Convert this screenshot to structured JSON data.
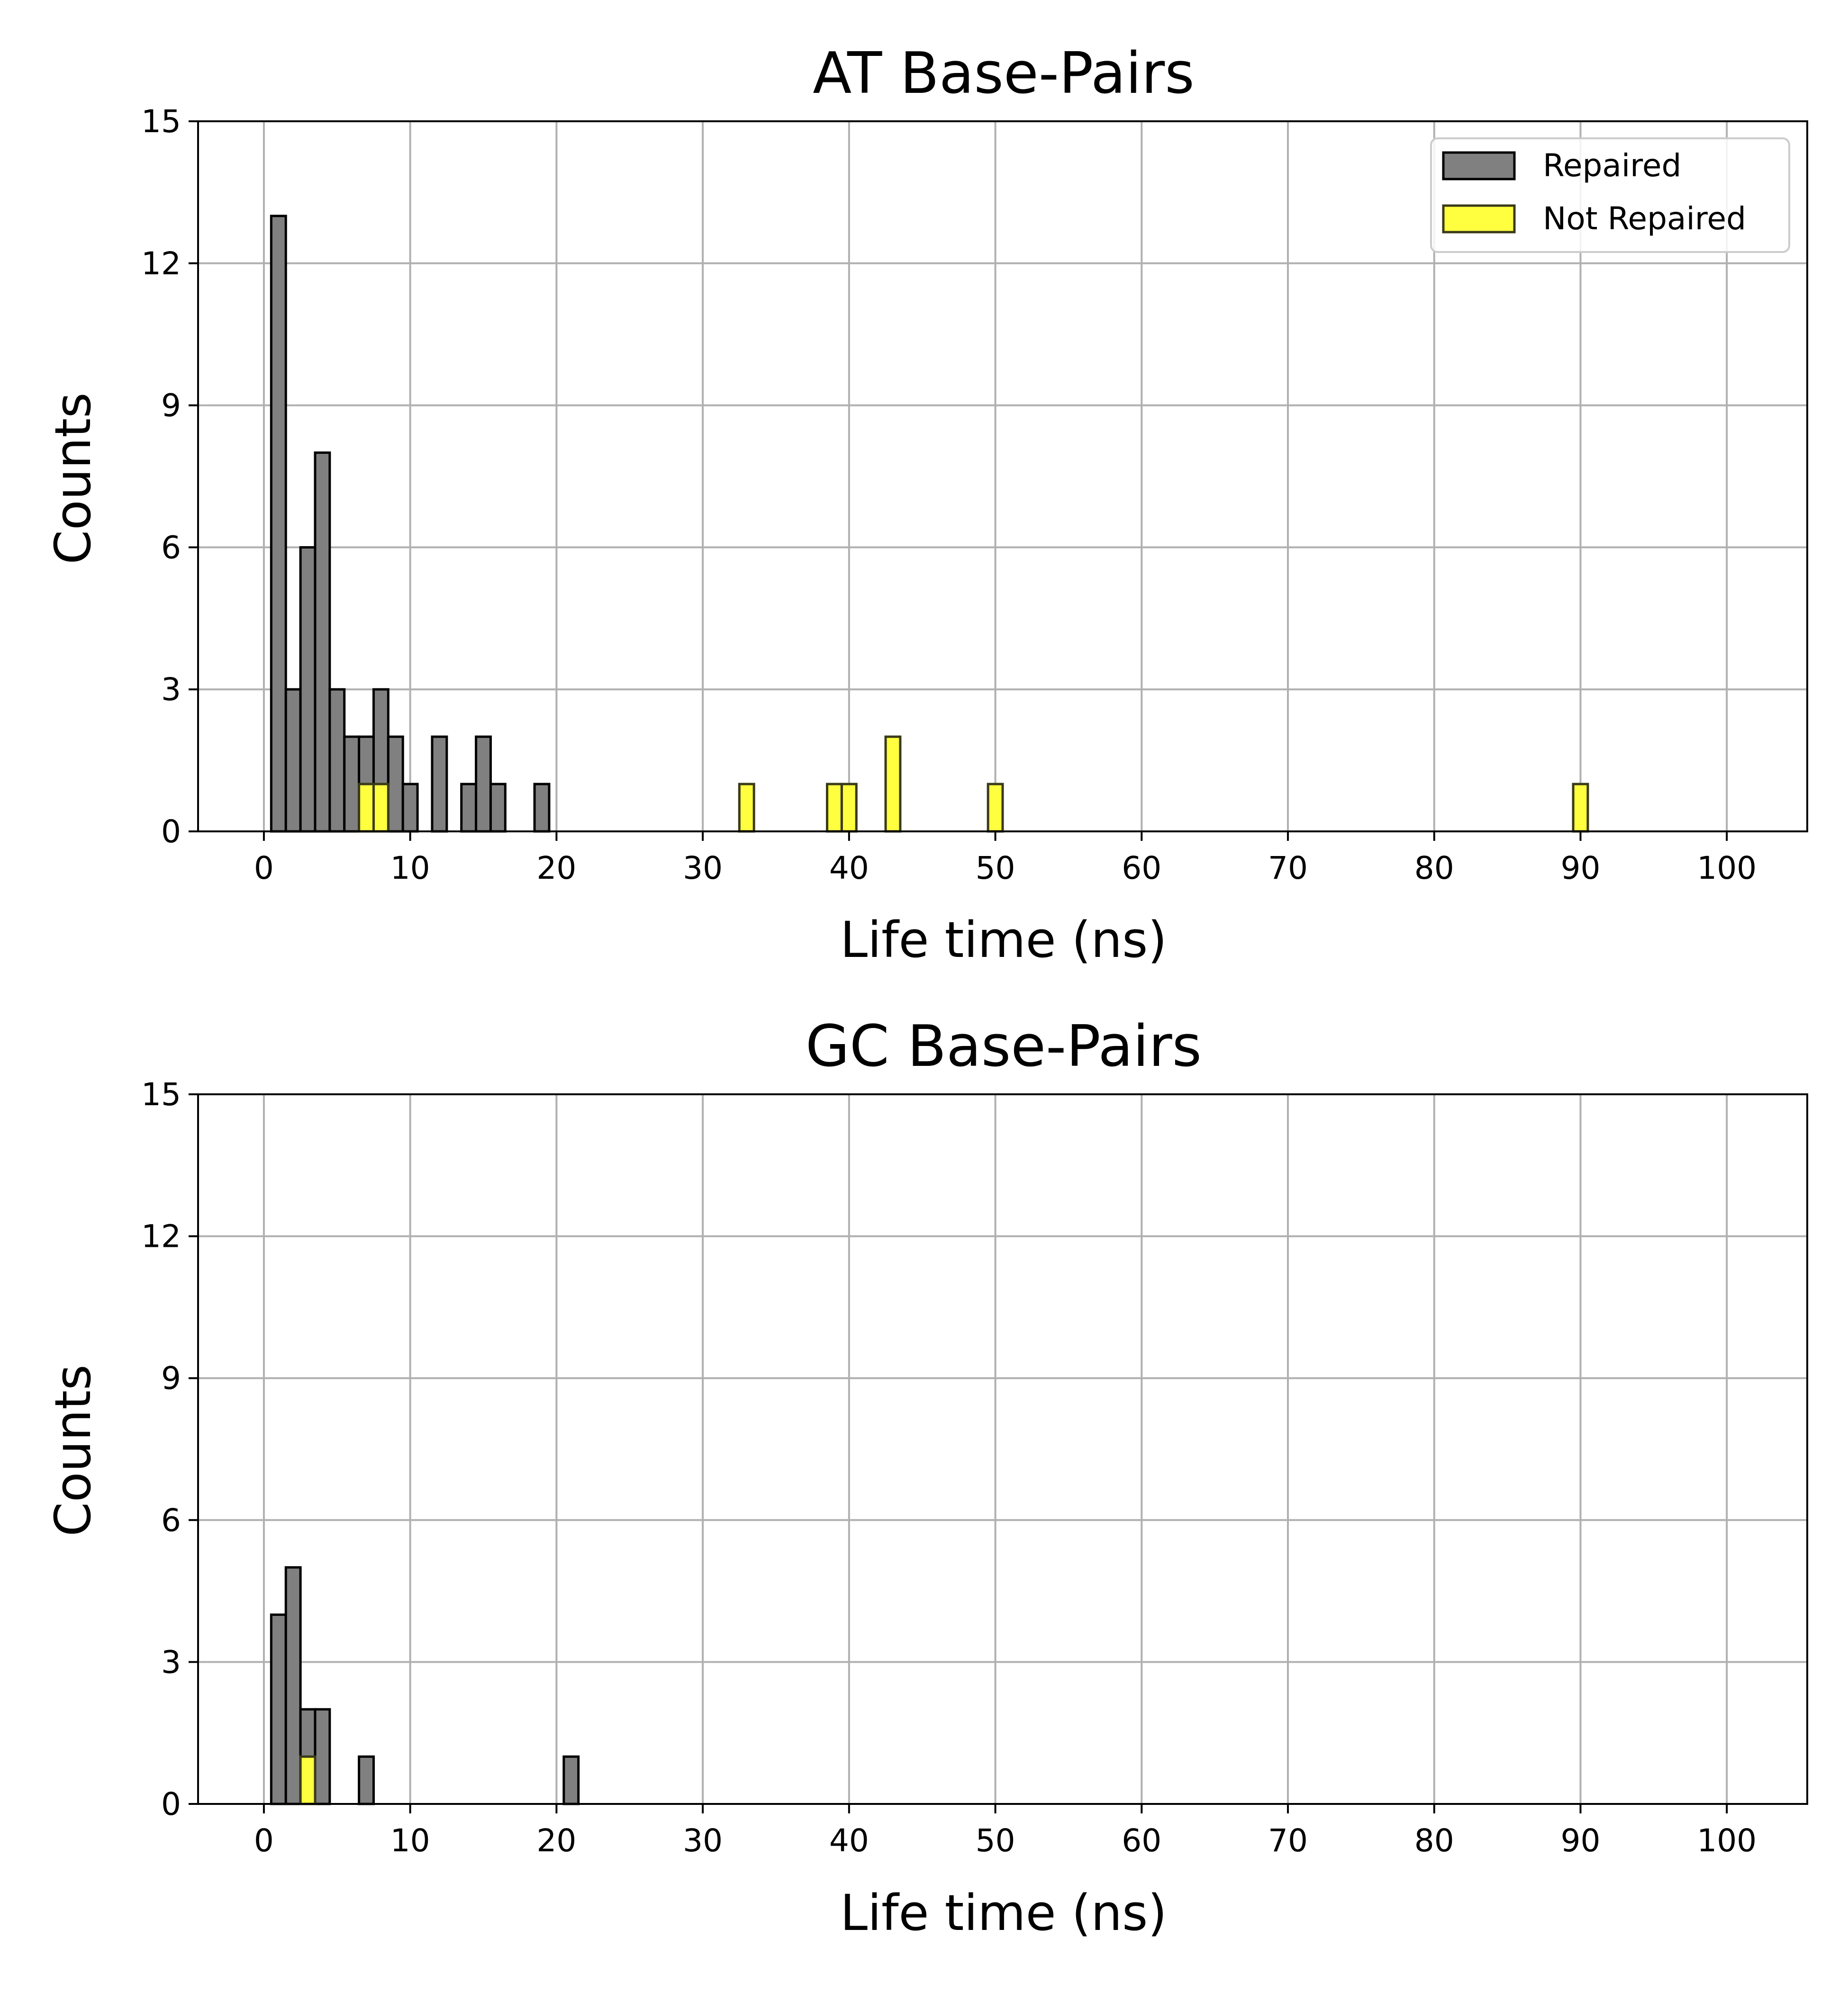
{
  "colors": {
    "repaired_fill": "#808080",
    "repaired_edge": "#000000",
    "not_repaired_fill": "#ffff40",
    "not_repaired_edge": "#3a3a1a",
    "grid": "#b0b0b0",
    "axis": "#000000"
  },
  "chart_data": [
    {
      "type": "bar",
      "subtype": "histogram",
      "title": "AT Base-Pairs",
      "xlabel": "Life time (ns)",
      "ylabel": "Counts",
      "xlim": [
        -4.5,
        105.5
      ],
      "ylim": [
        0,
        15
      ],
      "xticks": [
        0,
        10,
        20,
        30,
        40,
        50,
        60,
        70,
        80,
        90,
        100
      ],
      "yticks": [
        0,
        3,
        6,
        9,
        12,
        15
      ],
      "grid": true,
      "legend": {
        "position": "top-right",
        "entries": [
          "Repaired",
          "Not Repaired"
        ]
      },
      "series": [
        {
          "name": "Repaired",
          "bin_width": 1,
          "x": [
            1,
            2,
            3,
            4,
            5,
            6,
            7,
            8,
            9,
            10,
            12,
            14,
            15,
            16,
            19
          ],
          "values": [
            13,
            3,
            6,
            8,
            3,
            2,
            2,
            3,
            2,
            1,
            2,
            1,
            2,
            1,
            1
          ]
        },
        {
          "name": "Not Repaired",
          "bin_width": 1,
          "x": [
            7,
            8,
            33,
            39,
            40,
            43,
            50,
            90
          ],
          "values": [
            1,
            1,
            1,
            1,
            1,
            2,
            1,
            1
          ]
        }
      ]
    },
    {
      "type": "bar",
      "subtype": "histogram",
      "title": "GC Base-Pairs",
      "xlabel": "Life time (ns)",
      "ylabel": "Counts",
      "xlim": [
        -4.5,
        105.5
      ],
      "ylim": [
        0,
        15
      ],
      "xticks": [
        0,
        10,
        20,
        30,
        40,
        50,
        60,
        70,
        80,
        90,
        100
      ],
      "yticks": [
        0,
        3,
        6,
        9,
        12,
        15
      ],
      "grid": true,
      "series": [
        {
          "name": "Repaired",
          "bin_width": 1,
          "x": [
            1,
            2,
            3,
            4,
            7,
            21
          ],
          "values": [
            4,
            5,
            2,
            2,
            1,
            1
          ]
        },
        {
          "name": "Not Repaired",
          "bin_width": 1,
          "x": [
            3
          ],
          "values": [
            1
          ]
        }
      ]
    }
  ]
}
